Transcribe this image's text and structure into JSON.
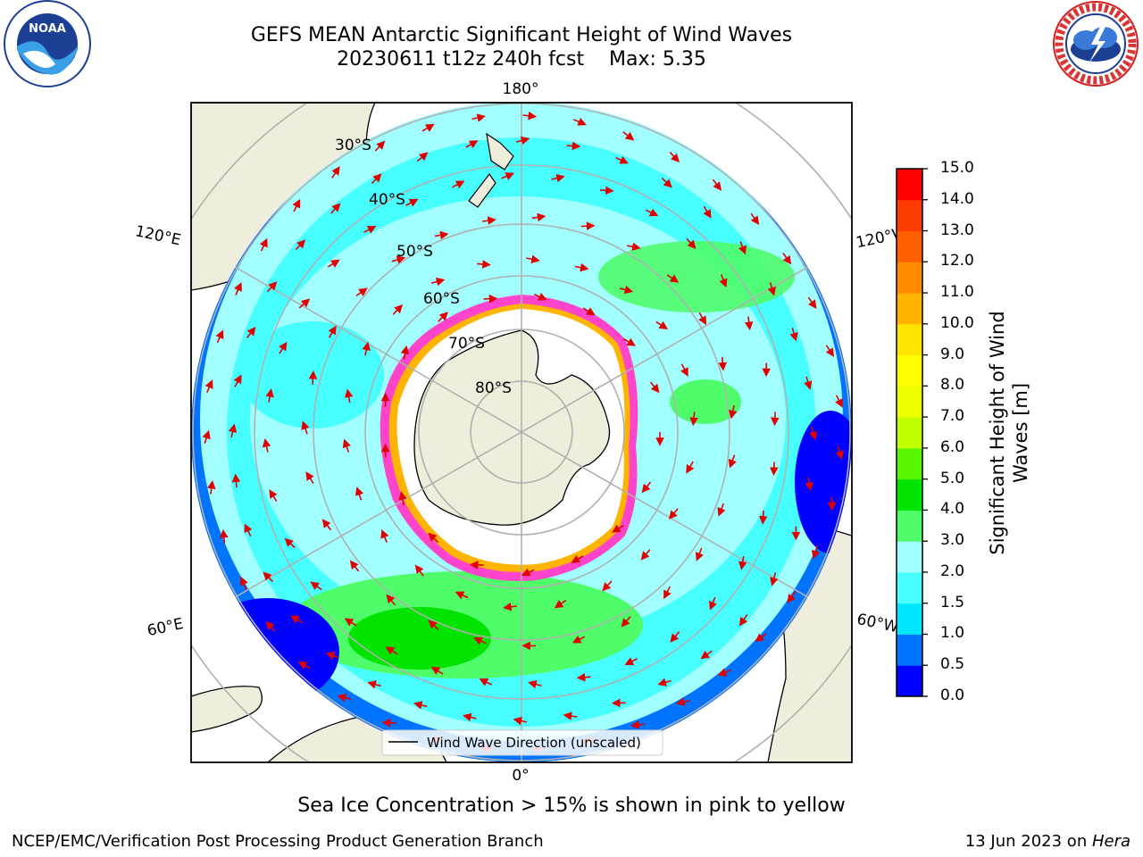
{
  "title": {
    "line1": "GEFS MEAN Antarctic Significant Height of Wind Waves",
    "line2": "20230611 t12z 240h fcst    Max: 5.35"
  },
  "logos": {
    "left": {
      "name": "noaa-logo",
      "text": "NOAA"
    },
    "right": {
      "name": "nws-logo",
      "text": "NATIONAL WEATHER SERVICE"
    }
  },
  "map": {
    "longitude_labels": {
      "top": "180°",
      "bottom": "0°",
      "upper_left": "120°E",
      "upper_right": "120°W",
      "lower_left": "60°E",
      "lower_right": "60°W"
    },
    "latitude_labels": [
      "30°S",
      "40°S",
      "50°S",
      "60°S",
      "70°S",
      "80°S"
    ],
    "legend": "Wind Wave Direction (unscaled)",
    "arrow_color": "#e00000",
    "land_color": "#efeedd"
  },
  "colorbar": {
    "label_line1": "Significant Height of Wind",
    "label_line2": "Waves [m]",
    "ticks": [
      "0.0",
      "0.5",
      "1.0",
      "1.5",
      "2.0",
      "3.0",
      "4.0",
      "5.0",
      "6.0",
      "7.0",
      "8.0",
      "9.0",
      "10.0",
      "11.0",
      "12.0",
      "13.0",
      "14.0",
      "15.0"
    ],
    "colors": [
      "#0000ff",
      "#0073ff",
      "#00e6ff",
      "#47ffff",
      "#a1ffff",
      "#4ffd6b",
      "#00e400",
      "#58f500",
      "#c0ff00",
      "#eeff00",
      "#ffff00",
      "#ffe600",
      "#ffb400",
      "#ff8c00",
      "#ff6000",
      "#ff3c00",
      "#ff0000"
    ]
  },
  "caption": "Sea Ice Concentration > 15% is shown in pink to yellow",
  "footer": {
    "left": "NCEP/EMC/Verification Post Processing Product Generation Branch",
    "right_prefix": "13 Jun 2023 on ",
    "right_italic": "Hera"
  }
}
